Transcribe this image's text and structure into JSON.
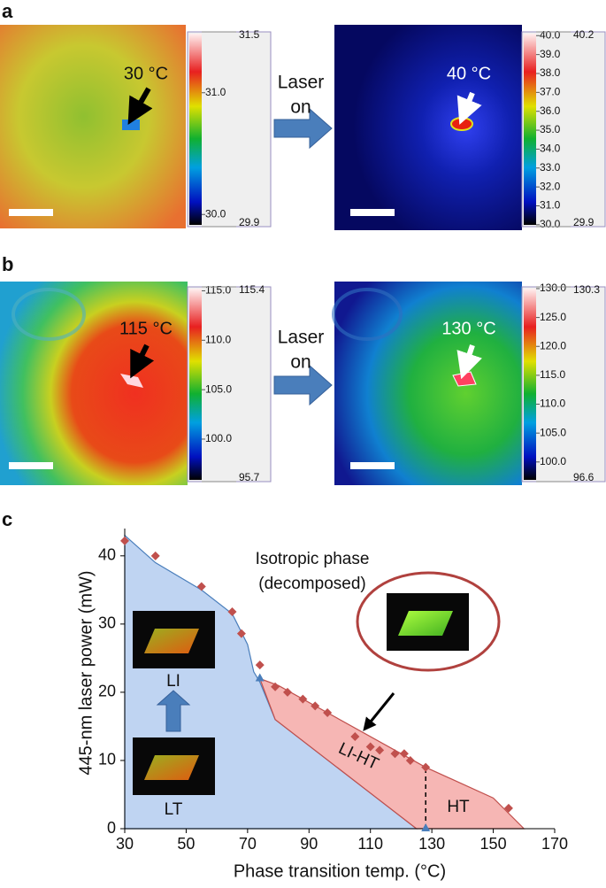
{
  "panel_a": {
    "label": "a",
    "arrow_text": [
      "Laser",
      "on"
    ],
    "left": {
      "annotation": "30 °C",
      "colorbar": {
        "lim": [
          29.9,
          31.5
        ],
        "ticks": [
          {
            "value": 30,
            "label": "30.0"
          },
          {
            "value": 31,
            "label": "31.0"
          }
        ]
      }
    },
    "right": {
      "annotation": "40 °C",
      "colorbar": {
        "lim": [
          29.9,
          40.2
        ],
        "ticks": [
          {
            "value": 30,
            "label": "30.0"
          },
          {
            "value": 31,
            "label": "31.0"
          },
          {
            "value": 32,
            "label": "32.0"
          },
          {
            "value": 33,
            "label": "33.0"
          },
          {
            "value": 34,
            "label": "34.0"
          },
          {
            "value": 35,
            "label": "35.0"
          },
          {
            "value": 36,
            "label": "36.0"
          },
          {
            "value": 37,
            "label": "37.0"
          },
          {
            "value": 38,
            "label": "38.0"
          },
          {
            "value": 39,
            "label": "39.0"
          },
          {
            "value": 40,
            "label": "40.0"
          }
        ]
      }
    }
  },
  "panel_b": {
    "label": "b",
    "arrow_text": [
      "Laser",
      "on"
    ],
    "left": {
      "annotation": "115 °C",
      "colorbar": {
        "lim": [
          95.7,
          115.4
        ],
        "ticks": [
          {
            "value": 100,
            "label": "100.0"
          },
          {
            "value": 105,
            "label": "105.0"
          },
          {
            "value": 110,
            "label": "110.0"
          },
          {
            "value": 115,
            "label": "115.0"
          }
        ]
      }
    },
    "right": {
      "annotation": "130 °C",
      "colorbar": {
        "lim": [
          96.6,
          130.3
        ],
        "ticks": [
          {
            "value": 100,
            "label": "100.0"
          },
          {
            "value": 105,
            "label": "105.0"
          },
          {
            "value": 110,
            "label": "110.0"
          },
          {
            "value": 115,
            "label": "115.0"
          },
          {
            "value": 120,
            "label": "120.0"
          },
          {
            "value": 125,
            "label": "125.0"
          },
          {
            "value": 130,
            "label": "130.0"
          }
        ]
      }
    }
  },
  "chart_data": {
    "type": "scatter",
    "label": "c",
    "x_label": "Phase transition temp. (°C)",
    "y_label": "445-nm laser power (mW)",
    "xlim": [
      30,
      170
    ],
    "xticks": [
      30,
      50,
      70,
      90,
      110,
      130,
      150,
      170
    ],
    "ylim": [
      0,
      44
    ],
    "yticks": [
      0,
      10,
      20,
      30,
      40
    ],
    "series": [
      {
        "color": "#c0504d",
        "x": [
          30,
          40,
          55,
          65,
          68,
          74,
          79,
          83,
          88,
          92,
          96,
          105,
          110,
          113,
          118,
          121,
          123,
          128,
          155
        ],
        "values": [
          42.2,
          40,
          35.5,
          31.8,
          28.6,
          24,
          20.8,
          20,
          19,
          18,
          17,
          13.5,
          12,
          11.5,
          11,
          11,
          10,
          9,
          3
        ]
      }
    ],
    "areas": [
      {
        "color": "#bfd4f2",
        "x": [
          30,
          40,
          55,
          65,
          70,
          72,
          74,
          79,
          125,
          30
        ],
        "y": [
          43,
          39,
          35,
          31.5,
          27,
          23,
          21.5,
          16,
          0,
          0
        ]
      },
      {
        "color": "#f6b6b4",
        "x": [
          74,
          80,
          128,
          150,
          160,
          125,
          79
        ],
        "y": [
          22,
          21,
          9,
          4.5,
          0,
          0,
          16
        ]
      }
    ],
    "markers": {
      "color": "#4a7ebb",
      "x": [
        74,
        128
      ],
      "y": [
        22,
        0
      ]
    },
    "divider": {
      "x": 128,
      "y": [
        0,
        9
      ]
    },
    "annotations": [
      "Isotropic phase",
      "(decomposed)",
      "LI",
      "LT",
      "LI-HT",
      "HT"
    ]
  }
}
